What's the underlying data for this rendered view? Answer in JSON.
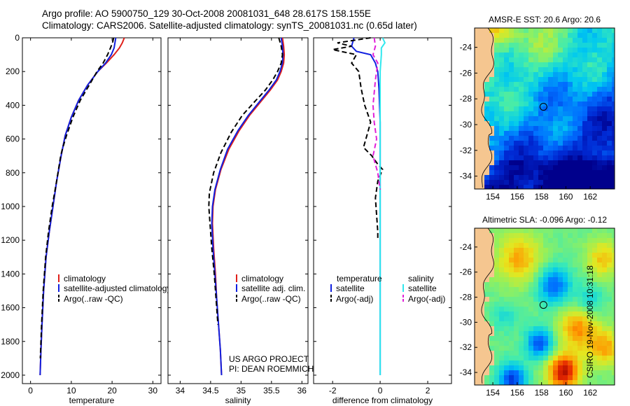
{
  "header": {
    "line1": "Argo profile: AO 5900750_129 30-Oct-2008 20081031_648 28.617S 158.155E",
    "line2": "Climatology: CARS2006. Satellite-adjusted climatology: synTS_20081031.nc (0.65d later)"
  },
  "stamp": "CSIRO 19-Nov-2008 10:31:18",
  "colors": {
    "red": "#e0201a",
    "blue": "#1020e0",
    "black": "#000000",
    "cyan": "#30e8ee",
    "magenta": "#e020d8"
  },
  "chart_data": [
    {
      "type": "line",
      "title": "",
      "xlabel": "temperature",
      "ylabel": "",
      "xlim": [
        -2,
        32
      ],
      "ylim": [
        2050,
        0
      ],
      "xticks": [
        "0",
        "10",
        "20",
        "30"
      ],
      "yticks": [
        "0",
        "200",
        "400",
        "600",
        "800",
        "1000",
        "1200",
        "1400",
        "1600",
        "1800",
        "2000"
      ],
      "legend": [
        "climatology",
        "satellite-adjusted climatology",
        "Argo(..raw -QC)"
      ],
      "series": [
        {
          "name": "climatology",
          "color": "red",
          "style": "solid",
          "x": [
            23.0,
            22.5,
            21.8,
            20.5,
            18.6,
            16.5,
            14.0,
            11.8,
            10.0,
            8.5,
            7.5,
            6.4,
            5.5,
            4.6,
            3.8,
            3.2,
            2.8,
            2.55,
            2.35
          ],
          "y": [
            0,
            30,
            60,
            100,
            150,
            200,
            280,
            370,
            470,
            580,
            700,
            850,
            1000,
            1150,
            1300,
            1500,
            1700,
            1850,
            2000
          ]
        },
        {
          "name": "satellite-adjusted climatology",
          "color": "blue",
          "style": "solid",
          "x": [
            20.9,
            20.7,
            20.5,
            19.8,
            18.4,
            16.5,
            14.0,
            11.8,
            10.0,
            8.5,
            7.5,
            6.4,
            5.5,
            4.6,
            3.8,
            3.2,
            2.8,
            2.55,
            2.35
          ],
          "y": [
            0,
            30,
            60,
            100,
            150,
            200,
            280,
            370,
            470,
            580,
            700,
            850,
            1000,
            1150,
            1300,
            1500,
            1700,
            1850,
            2000
          ]
        },
        {
          "name": "Argo(..raw -QC)",
          "color": "black",
          "style": "dashed",
          "x": [
            20.4,
            20.1,
            19.6,
            18.9,
            17.8,
            16.3,
            14.4,
            12.2,
            10.4,
            8.8,
            7.8,
            7.4,
            6.4,
            5.3,
            4.4,
            3.7,
            3.1,
            2.7,
            2.4
          ],
          "y": [
            0,
            30,
            60,
            100,
            150,
            200,
            280,
            370,
            470,
            580,
            660,
            700,
            850,
            1000,
            1150,
            1300,
            1500,
            1700,
            1900
          ]
        }
      ]
    },
    {
      "type": "line",
      "xlabel": "salinity",
      "xlim": [
        33.8,
        36.1
      ],
      "ylim": [
        2050,
        0
      ],
      "xticks": [
        "34",
        "34.5",
        "35",
        "35.5",
        "36"
      ],
      "legend": [
        "climatology",
        "satellite adj. clim.",
        "Argo(..raw -QC)"
      ],
      "annotations": [
        "US ARGO PROJECT",
        "PI: DEAN ROEMMICH"
      ],
      "series": [
        {
          "name": "climatology",
          "color": "red",
          "style": "solid",
          "x": [
            35.68,
            35.7,
            35.71,
            35.7,
            35.66,
            35.6,
            35.48,
            35.32,
            35.14,
            34.97,
            34.8,
            34.67,
            34.58,
            34.54,
            34.53,
            34.55,
            34.58,
            34.6,
            34.63,
            34.66,
            34.68
          ],
          "y": [
            0,
            50,
            100,
            150,
            200,
            250,
            310,
            380,
            460,
            550,
            660,
            780,
            900,
            1000,
            1100,
            1250,
            1400,
            1550,
            1700,
            1850,
            2000
          ]
        },
        {
          "name": "satellite adj. clim.",
          "color": "blue",
          "style": "solid",
          "x": [
            35.66,
            35.68,
            35.69,
            35.68,
            35.64,
            35.58,
            35.46,
            35.3,
            35.12,
            34.95,
            34.78,
            34.66,
            34.57,
            34.53,
            34.52,
            34.54,
            34.57,
            34.6,
            34.63,
            34.66,
            34.68
          ],
          "y": [
            0,
            50,
            100,
            150,
            200,
            250,
            310,
            380,
            460,
            550,
            660,
            780,
            900,
            1000,
            1100,
            1250,
            1400,
            1550,
            1700,
            1850,
            2000
          ]
        },
        {
          "name": "Argo(..raw -QC)",
          "color": "black",
          "style": "dashed",
          "x": [
            35.62,
            35.66,
            35.68,
            35.66,
            35.6,
            35.52,
            35.4,
            35.22,
            35.02,
            34.84,
            34.67,
            34.55,
            34.48,
            34.47,
            34.49,
            34.52,
            34.56,
            34.59,
            34.62
          ],
          "y": [
            0,
            50,
            100,
            150,
            200,
            250,
            310,
            380,
            460,
            560,
            680,
            800,
            920,
            1000,
            1100,
            1250,
            1400,
            1550,
            1700
          ]
        }
      ]
    },
    {
      "type": "line",
      "xlabel": "difference from climatology",
      "xlim": [
        -2.8,
        3.0
      ],
      "ylim": [
        2050,
        0
      ],
      "xticks": [
        "-2",
        "0",
        "2"
      ],
      "legend": [
        "temperature",
        "satellite",
        "Argo(-adj)",
        "salinity",
        "satellite",
        "Argo(-adj)"
      ],
      "series": [
        {
          "name": "temperature satellite",
          "color": "blue",
          "style": "solid",
          "x": [
            -1.1,
            -1.2,
            -1.0,
            -0.4,
            -0.2,
            -0.1,
            -0.05,
            0,
            0,
            0,
            0
          ],
          "y": [
            0,
            50,
            80,
            100,
            150,
            200,
            300,
            500,
            800,
            1200,
            2000
          ]
        },
        {
          "name": "temperature Argo(-adj)",
          "color": "black",
          "style": "dashed",
          "x": [
            -0.4,
            -1.8,
            -1.2,
            -2.0,
            -1.0,
            -1.2,
            -0.9,
            -0.8,
            -0.65,
            -0.4,
            -0.6,
            -0.7,
            -0.35,
            -0.1,
            0.1,
            -0.1,
            -0.2,
            -0.15,
            -0.1,
            -0.1
          ],
          "y": [
            0,
            30,
            50,
            70,
            100,
            150,
            200,
            300,
            400,
            500,
            600,
            650,
            700,
            750,
            780,
            850,
            950,
            1050,
            1150,
            1200
          ]
        },
        {
          "name": "salinity satellite",
          "color": "cyan",
          "style": "solid",
          "x": [
            0.1,
            0.2,
            0.05,
            0.05,
            0,
            0,
            0,
            0,
            0,
            0
          ],
          "y": [
            0,
            30,
            60,
            100,
            200,
            400,
            800,
            1200,
            1600,
            2000
          ]
        },
        {
          "name": "salinity Argo(-adj)",
          "color": "magenta",
          "style": "dashed",
          "x": [
            -0.25,
            -0.2,
            -0.3,
            -0.1,
            -0.2,
            -0.3,
            -0.25,
            -0.15,
            -0.3,
            -0.2,
            -0.1,
            0
          ],
          "y": [
            0,
            50,
            100,
            150,
            250,
            400,
            500,
            600,
            700,
            750,
            800,
            900
          ]
        }
      ]
    },
    {
      "type": "heatmap",
      "title": "AMSR-E SST: 20.6 Argo: 20.6",
      "xticks": [
        "154",
        "156",
        "158",
        "160",
        "162"
      ],
      "yticks": [
        "-24",
        "-26",
        "-28",
        "-30",
        "-32",
        "-34"
      ],
      "xlim": [
        152.5,
        164
      ],
      "ylim": [
        -35,
        -22.5
      ],
      "marker": [
        158.155,
        -28.617
      ]
    },
    {
      "type": "heatmap",
      "title": "Altimetric SLA: -0.096 Argo: -0.12",
      "xticks": [
        "154",
        "156",
        "158",
        "160",
        "162"
      ],
      "yticks": [
        "-24",
        "-26",
        "-28",
        "-30",
        "-32",
        "-34"
      ],
      "xlim": [
        152.5,
        164
      ],
      "ylim": [
        -35,
        -22.5
      ],
      "marker": [
        158.155,
        -28.617
      ]
    }
  ]
}
